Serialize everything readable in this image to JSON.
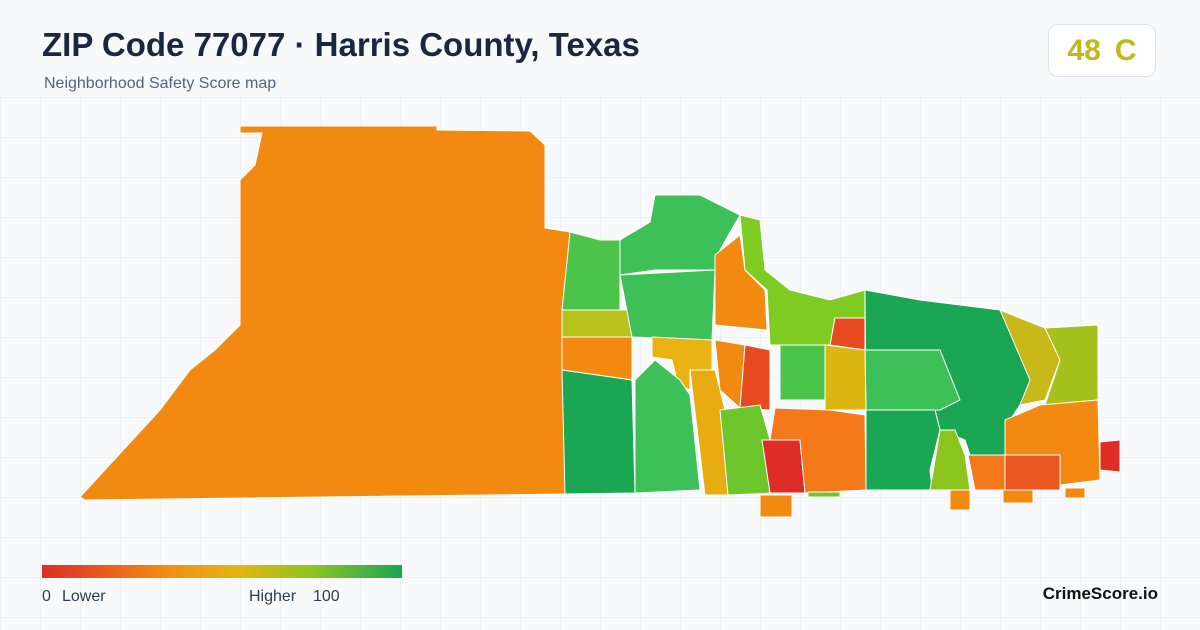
{
  "header": {
    "title": "ZIP Code 77077 · Harris County, Texas",
    "subtitle": "Neighborhood Safety Score map"
  },
  "score": {
    "value": 48,
    "grade": "C"
  },
  "legend": {
    "min": 0,
    "min_label": "Lower",
    "max_label": "Higher",
    "max": 100
  },
  "brand": "CrimeScore.io"
}
